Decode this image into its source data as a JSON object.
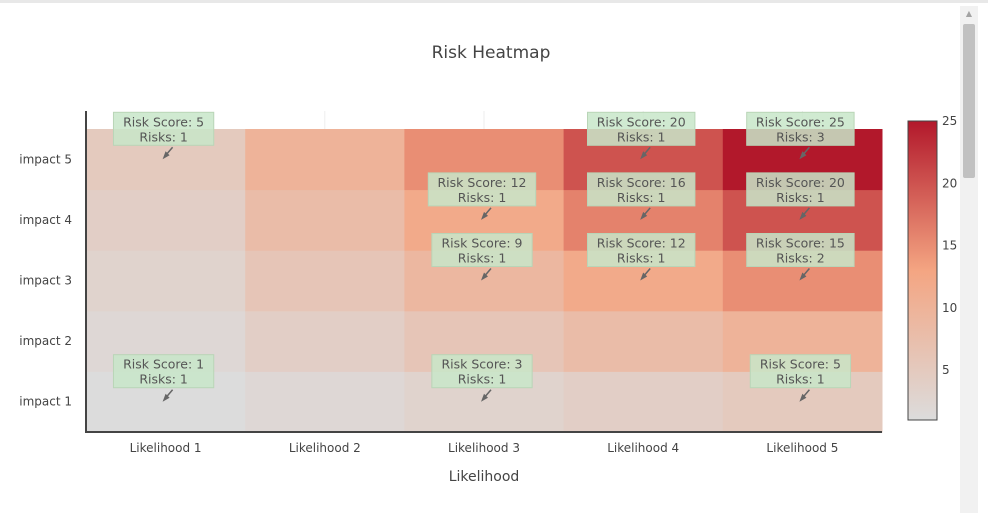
{
  "chart_data": {
    "type": "heatmap",
    "title": "Risk Heatmap",
    "xlabel": "Likelihood",
    "ylabel": "",
    "x": [
      "Likelihood 1",
      "Likelihood 2",
      "Likelihood 3",
      "Likelihood 4",
      "Likelihood 5"
    ],
    "y": [
      "impact 1",
      "impact 2",
      "impact 3",
      "impact 4",
      "impact 5"
    ],
    "z": [
      [
        1,
        2,
        3,
        4,
        5
      ],
      [
        2,
        4,
        6,
        8,
        10
      ],
      [
        3,
        6,
        9,
        12,
        15
      ],
      [
        4,
        8,
        12,
        16,
        20
      ],
      [
        5,
        10,
        15,
        20,
        25
      ]
    ],
    "colorscale": [
      "#dcdcdc",
      "#f4a582",
      "#b2182b"
    ],
    "colorbar": {
      "ticks": [
        5,
        10,
        15,
        20,
        25
      ],
      "range": [
        1,
        25
      ]
    },
    "annotations": [
      {
        "x": "Likelihood 1",
        "y": "impact 5",
        "line1": "Risk Score: 5",
        "line2": "Risks: 1"
      },
      {
        "x": "Likelihood 4",
        "y": "impact 5",
        "line1": "Risk Score: 20",
        "line2": "Risks: 1"
      },
      {
        "x": "Likelihood 5",
        "y": "impact 5",
        "line1": "Risk Score: 25",
        "line2": "Risks: 3"
      },
      {
        "x": "Likelihood 3",
        "y": "impact 4",
        "line1": "Risk Score: 12",
        "line2": "Risks: 1"
      },
      {
        "x": "Likelihood 4",
        "y": "impact 4",
        "line1": "Risk Score: 16",
        "line2": "Risks: 1"
      },
      {
        "x": "Likelihood 5",
        "y": "impact 4",
        "line1": "Risk Score: 20",
        "line2": "Risks: 1"
      },
      {
        "x": "Likelihood 3",
        "y": "impact 3",
        "line1": "Risk Score: 9",
        "line2": "Risks: 1"
      },
      {
        "x": "Likelihood 4",
        "y": "impact 3",
        "line1": "Risk Score: 12",
        "line2": "Risks: 1"
      },
      {
        "x": "Likelihood 5",
        "y": "impact 3",
        "line1": "Risk Score: 15",
        "line2": "Risks: 2"
      },
      {
        "x": "Likelihood 1",
        "y": "impact 1",
        "line1": "Risk Score: 1",
        "line2": "Risks: 1"
      },
      {
        "x": "Likelihood 3",
        "y": "impact 1",
        "line1": "Risk Score: 3",
        "line2": "Risks: 1"
      },
      {
        "x": "Likelihood 5",
        "y": "impact 1",
        "line1": "Risk Score: 5",
        "line2": "Risks: 1"
      }
    ]
  }
}
